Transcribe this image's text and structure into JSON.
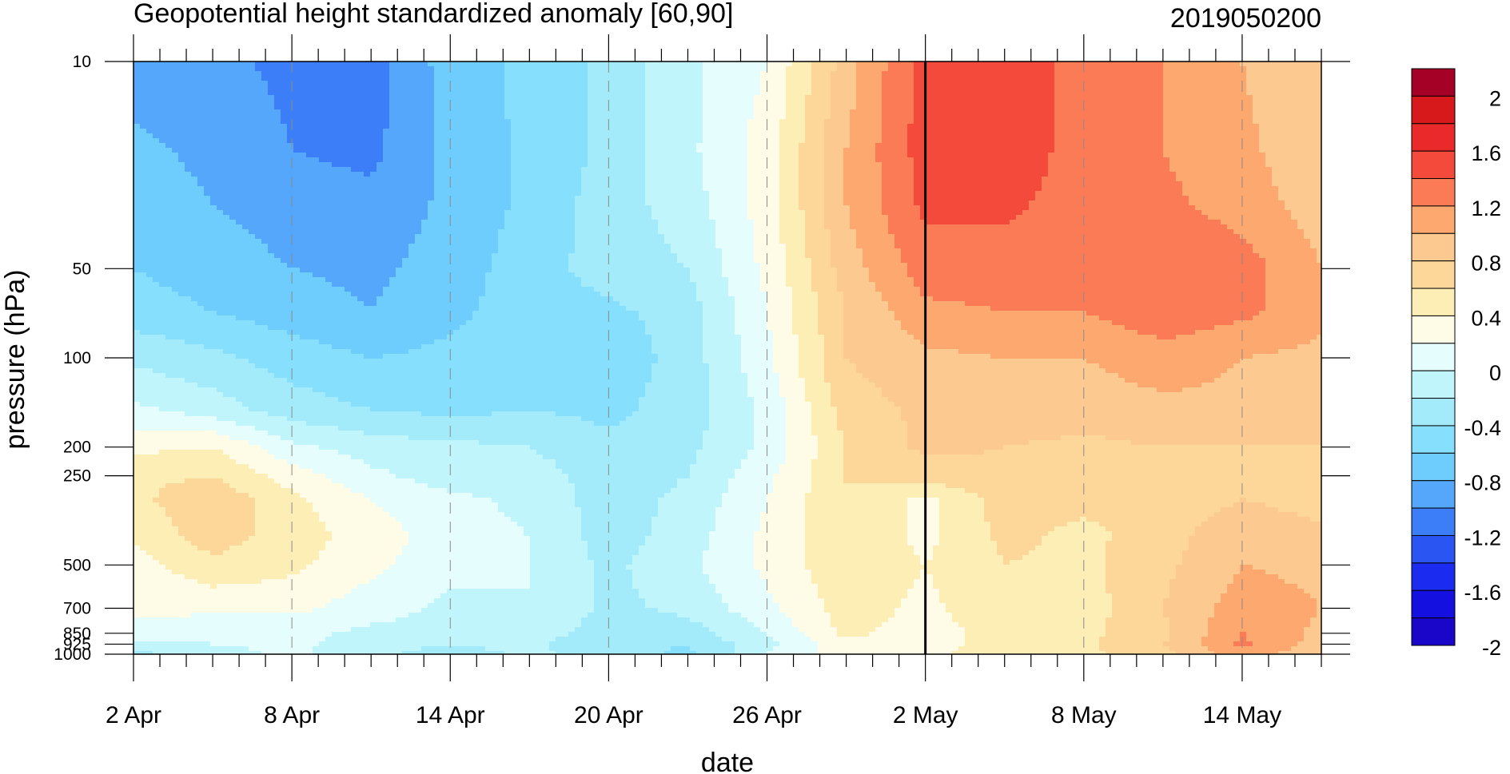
{
  "chart_data": {
    "type": "heatmap",
    "subtype": "filled-contour time-pressure cross-section",
    "title": "Geopotential height standardized anomaly [60,90]",
    "right_title": "2019050200",
    "xlabel": "date",
    "ylabel": "pressure (hPa)",
    "x_tick_labels": [
      "2 Apr",
      "8 Apr",
      "14 Apr",
      "20 Apr",
      "26 Apr",
      "2 May",
      "8 May",
      "14 May"
    ],
    "x_tick_day_index": [
      0,
      6,
      12,
      18,
      24,
      30,
      36,
      42
    ],
    "x_range_day_index": [
      0,
      45
    ],
    "y_tick_labels": [
      "10",
      "50",
      "100",
      "200",
      "250",
      "500",
      "700",
      "850",
      "925",
      "1000"
    ],
    "y_tick_values": [
      10,
      50,
      100,
      200,
      250,
      500,
      700,
      850,
      925,
      1000
    ],
    "y_range": [
      10,
      1000
    ],
    "y_scale": "log, reversed (10 hPa at top)",
    "marker_vertical_line_day_index": 30,
    "colorbar": {
      "labels": [
        "2",
        "1.6",
        "1.2",
        "0.8",
        "0.4",
        "0",
        "-0.4",
        "-0.8",
        "-1.2",
        "-1.6",
        "-2"
      ],
      "levels": [
        2,
        1.8,
        1.6,
        1.4,
        1.2,
        1.0,
        0.8,
        0.6,
        0.4,
        0.2,
        0,
        -0.2,
        -0.4,
        -0.6,
        -0.8,
        -1.0,
        -1.2,
        -1.4,
        -1.6,
        -1.8,
        -2
      ],
      "colors": [
        "#a50026",
        "#d7191c",
        "#ea2a2a",
        "#f44a3b",
        "#fb7b56",
        "#fca86e",
        "#fcc990",
        "#fdd79a",
        "#fdeeb5",
        "#fefbe6",
        "#e6fdfd",
        "#bff5fb",
        "#a3ebfb",
        "#86e0fd",
        "#6fcdfd",
        "#54a7fb",
        "#3b7ef7",
        "#2a55f2",
        "#1c2bf0",
        "#1410e0",
        "#1a06c8"
      ]
    },
    "grid": "dashed vertical lines at x ticks",
    "legend": "colorbar right",
    "anomaly_grid": {
      "pressure_levels": [
        10,
        20,
        30,
        50,
        70,
        100,
        150,
        200,
        250,
        300,
        400,
        500,
        700,
        850,
        925,
        1000
      ],
      "day_index": [
        0,
        3,
        6,
        9,
        12,
        15,
        18,
        21,
        24,
        27,
        30,
        33,
        36,
        39,
        42,
        45
      ],
      "values": [
        [
          -0.9,
          -0.95,
          -1.05,
          -1.1,
          -0.7,
          -0.55,
          -0.35,
          -0.05,
          0.2,
          0.9,
          1.5,
          1.6,
          1.3,
          1.2,
          1.0,
          0.8
        ],
        [
          -0.75,
          -0.85,
          -1.0,
          -1.05,
          -0.75,
          -0.55,
          -0.35,
          -0.05,
          0.3,
          1.0,
          1.5,
          1.55,
          1.3,
          1.2,
          1.05,
          0.85
        ],
        [
          -0.7,
          -0.8,
          -0.9,
          -0.95,
          -0.75,
          -0.55,
          -0.3,
          -0.1,
          0.3,
          1.0,
          1.45,
          1.45,
          1.3,
          1.25,
          1.1,
          0.9
        ],
        [
          -0.6,
          -0.7,
          -0.8,
          -0.85,
          -0.7,
          -0.5,
          -0.3,
          -0.2,
          0.25,
          0.9,
          1.3,
          1.3,
          1.25,
          1.4,
          1.3,
          1.0
        ],
        [
          -0.5,
          -0.6,
          -0.7,
          -0.8,
          -0.65,
          -0.5,
          -0.45,
          -0.3,
          0.2,
          0.8,
          1.15,
          1.2,
          1.2,
          1.35,
          1.25,
          1.05
        ],
        [
          -0.25,
          -0.35,
          -0.5,
          -0.6,
          -0.55,
          -0.45,
          -0.55,
          -0.3,
          0.15,
          0.8,
          0.95,
          1.0,
          1.0,
          1.1,
          1.0,
          0.95
        ],
        [
          0.05,
          -0.1,
          -0.3,
          -0.4,
          -0.45,
          -0.4,
          -0.45,
          -0.3,
          0.05,
          0.7,
          0.85,
          0.9,
          0.9,
          0.95,
          0.95,
          0.9
        ],
        [
          0.35,
          0.4,
          0.05,
          -0.1,
          -0.15,
          -0.2,
          -0.35,
          -0.25,
          0.05,
          0.6,
          0.85,
          0.8,
          0.75,
          0.8,
          0.8,
          0.8
        ],
        [
          0.55,
          0.6,
          0.3,
          0.05,
          -0.1,
          -0.1,
          -0.3,
          -0.2,
          0.15,
          0.6,
          0.7,
          0.75,
          0.7,
          0.75,
          0.7,
          0.75
        ],
        [
          0.55,
          0.75,
          0.45,
          0.2,
          0.05,
          -0.05,
          -0.3,
          -0.15,
          0.2,
          0.6,
          0.35,
          0.7,
          0.65,
          0.6,
          0.8,
          0.7
        ],
        [
          0.45,
          0.7,
          0.5,
          0.3,
          0.1,
          0.0,
          -0.3,
          -0.1,
          0.25,
          0.55,
          0.35,
          0.65,
          0.55,
          0.7,
          1.0,
          0.85
        ],
        [
          0.3,
          0.55,
          0.45,
          0.25,
          0.05,
          0.0,
          -0.25,
          -0.05,
          0.25,
          0.55,
          0.4,
          0.6,
          0.55,
          0.75,
          1.0,
          0.95
        ],
        [
          0.25,
          0.25,
          0.25,
          0.1,
          -0.05,
          0.0,
          -0.25,
          -0.15,
          0.15,
          0.5,
          0.35,
          0.55,
          0.5,
          0.8,
          1.1,
          1.0
        ],
        [
          0.1,
          0.05,
          0.05,
          -0.05,
          -0.1,
          -0.1,
          -0.3,
          -0.3,
          0.0,
          0.45,
          0.3,
          0.5,
          0.55,
          0.75,
          1.2,
          0.95
        ],
        [
          -0.05,
          0.0,
          0.05,
          -0.1,
          -0.2,
          -0.15,
          -0.35,
          -0.4,
          -0.05,
          0.35,
          0.3,
          0.5,
          0.55,
          0.8,
          1.25,
          0.9
        ],
        [
          -0.25,
          -0.1,
          0.05,
          -0.15,
          -0.3,
          -0.15,
          -0.3,
          -0.45,
          0.0,
          0.3,
          0.35,
          0.5,
          0.55,
          0.75,
          1.1,
          0.85
        ]
      ]
    }
  }
}
